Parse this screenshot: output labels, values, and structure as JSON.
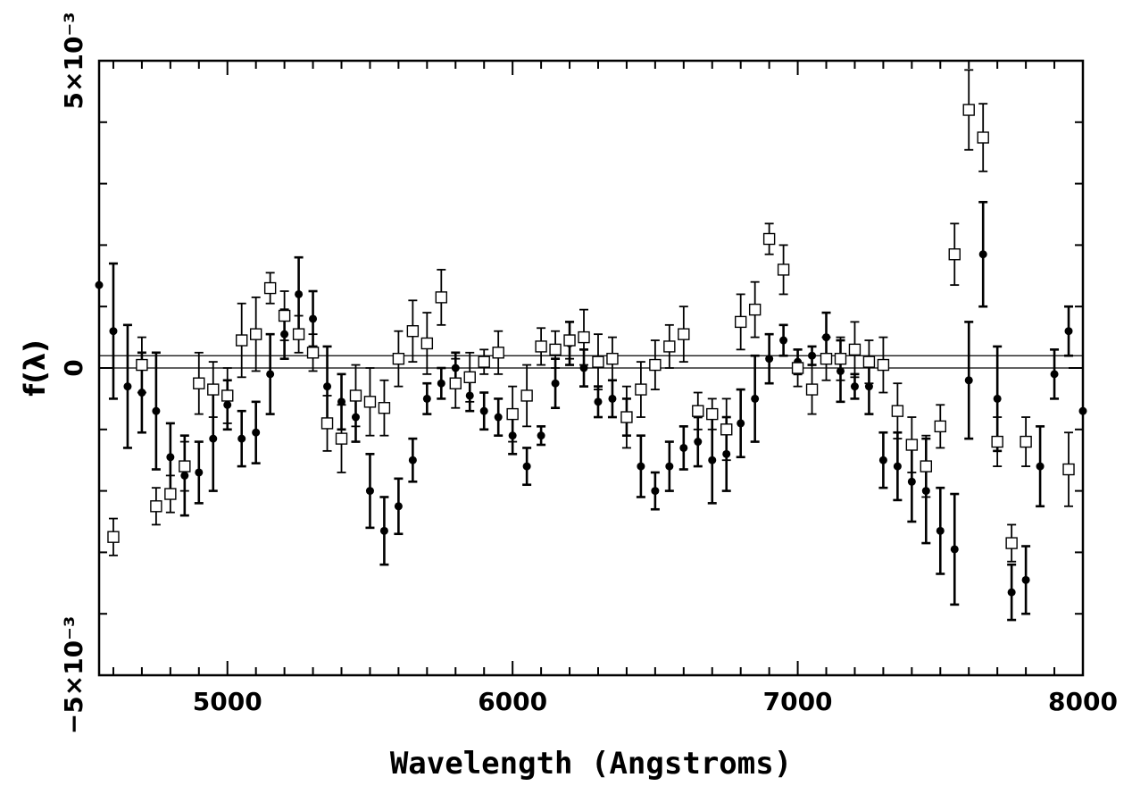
{
  "chart_data": {
    "type": "scatter",
    "xlabel": "Wavelength (Angstroms)",
    "ylabel": "f(λ)",
    "xlim": [
      4550,
      8000
    ],
    "ylim": [
      -0.005,
      0.005
    ],
    "x_ticks": [
      {
        "value": 5000,
        "label": "5000"
      },
      {
        "value": 6000,
        "label": "6000"
      },
      {
        "value": 7000,
        "label": "7000"
      },
      {
        "value": 8000,
        "label": "8000"
      }
    ],
    "y_ticks": [
      {
        "value": 0.005,
        "label": "5×10⁻³"
      },
      {
        "value": 0,
        "label": "0"
      },
      {
        "value": -0.005,
        "label": "−5×10⁻³"
      }
    ],
    "reference_lines": [
      0,
      0.0002
    ],
    "series": [
      {
        "marker": "filled-circle",
        "points": [
          {
            "x": 4550,
            "y": 0.00135,
            "err": 0
          },
          {
            "x": 4600,
            "y": 0.0006,
            "err": 0.0011
          },
          {
            "x": 4650,
            "y": -0.0003,
            "err": 0.001
          },
          {
            "x": 4700,
            "y": -0.0004,
            "err": 0.00065
          },
          {
            "x": 4750,
            "y": -0.0007,
            "err": 0.00095
          },
          {
            "x": 4800,
            "y": -0.00145,
            "err": 0.00055
          },
          {
            "x": 4850,
            "y": -0.00175,
            "err": 0.00065
          },
          {
            "x": 4900,
            "y": -0.0017,
            "err": 0.0005
          },
          {
            "x": 4950,
            "y": -0.00115,
            "err": 0.00085
          },
          {
            "x": 5000,
            "y": -0.0006,
            "err": 0.0004
          },
          {
            "x": 5050,
            "y": -0.00115,
            "err": 0.00045
          },
          {
            "x": 5100,
            "y": -0.00105,
            "err": 0.0005
          },
          {
            "x": 5150,
            "y": -0.0001,
            "err": 0.00065
          },
          {
            "x": 5200,
            "y": 0.00055,
            "err": 0.0004
          },
          {
            "x": 5250,
            "y": 0.0012,
            "err": 0.0006
          },
          {
            "x": 5300,
            "y": 0.0008,
            "err": 0.00045
          },
          {
            "x": 5350,
            "y": -0.0003,
            "err": 0.00065
          },
          {
            "x": 5400,
            "y": -0.00055,
            "err": 0.00045
          },
          {
            "x": 5450,
            "y": -0.0008,
            "err": 0.0004
          },
          {
            "x": 5500,
            "y": -0.002,
            "err": 0.0006
          },
          {
            "x": 5550,
            "y": -0.00265,
            "err": 0.00055
          },
          {
            "x": 5600,
            "y": -0.00225,
            "err": 0.00045
          },
          {
            "x": 5650,
            "y": -0.0015,
            "err": 0.00035
          },
          {
            "x": 5700,
            "y": -0.0005,
            "err": 0.00025
          },
          {
            "x": 5750,
            "y": -0.00025,
            "err": 0.00025
          },
          {
            "x": 5800,
            "y": 0.0,
            "err": 0.00025
          },
          {
            "x": 5850,
            "y": -0.00045,
            "err": 0.00025
          },
          {
            "x": 5900,
            "y": -0.0007,
            "err": 0.0003
          },
          {
            "x": 5950,
            "y": -0.0008,
            "err": 0.0003
          },
          {
            "x": 6000,
            "y": -0.0011,
            "err": 0.0003
          },
          {
            "x": 6050,
            "y": -0.0016,
            "err": 0.0003
          },
          {
            "x": 6100,
            "y": -0.0011,
            "err": 0.00015
          },
          {
            "x": 6150,
            "y": -0.00025,
            "err": 0.0004
          },
          {
            "x": 6200,
            "y": 0.0004,
            "err": 0.00035
          },
          {
            "x": 6250,
            "y": 0.0,
            "err": 0.0003
          },
          {
            "x": 6300,
            "y": -0.00055,
            "err": 0.00025
          },
          {
            "x": 6350,
            "y": -0.0005,
            "err": 0.0003
          },
          {
            "x": 6400,
            "y": -0.0008,
            "err": 0.0003
          },
          {
            "x": 6450,
            "y": -0.0016,
            "err": 0.0005
          },
          {
            "x": 6500,
            "y": -0.002,
            "err": 0.0003
          },
          {
            "x": 6550,
            "y": -0.0016,
            "err": 0.0004
          },
          {
            "x": 6600,
            "y": -0.0013,
            "err": 0.00035
          },
          {
            "x": 6650,
            "y": -0.0012,
            "err": 0.0004
          },
          {
            "x": 6700,
            "y": -0.0015,
            "err": 0.0007
          },
          {
            "x": 6750,
            "y": -0.0014,
            "err": 0.0006
          },
          {
            "x": 6800,
            "y": -0.0009,
            "err": 0.00055
          },
          {
            "x": 6850,
            "y": -0.0005,
            "err": 0.0007
          },
          {
            "x": 6900,
            "y": 0.00015,
            "err": 0.0004
          },
          {
            "x": 6950,
            "y": 0.00045,
            "err": 0.00025
          },
          {
            "x": 7000,
            "y": 0.0001,
            "err": 0.0002
          },
          {
            "x": 7050,
            "y": 0.0002,
            "err": 0.00015
          },
          {
            "x": 7100,
            "y": 0.0005,
            "err": 0.0004
          },
          {
            "x": 7150,
            "y": -5e-05,
            "err": 0.0005
          },
          {
            "x": 7200,
            "y": -0.0003,
            "err": 0.0002
          },
          {
            "x": 7250,
            "y": -0.0003,
            "err": 0.00045
          },
          {
            "x": 7300,
            "y": -0.0015,
            "err": 0.00045
          },
          {
            "x": 7350,
            "y": -0.0016,
            "err": 0.00055
          },
          {
            "x": 7400,
            "y": -0.00185,
            "err": 0.00065
          },
          {
            "x": 7450,
            "y": -0.002,
            "err": 0.00085
          },
          {
            "x": 7500,
            "y": -0.00265,
            "err": 0.0007
          },
          {
            "x": 7550,
            "y": -0.00295,
            "err": 0.0009
          },
          {
            "x": 7600,
            "y": -0.0002,
            "err": 0.00095
          },
          {
            "x": 7650,
            "y": 0.00185,
            "err": 0.00085
          },
          {
            "x": 7700,
            "y": -0.0005,
            "err": 0.00085
          },
          {
            "x": 7750,
            "y": -0.00365,
            "err": 0.00045
          },
          {
            "x": 7800,
            "y": -0.00345,
            "err": 0.00055
          },
          {
            "x": 7850,
            "y": -0.0016,
            "err": 0.00065
          },
          {
            "x": 7900,
            "y": -0.0001,
            "err": 0.0004
          },
          {
            "x": 7950,
            "y": 0.0006,
            "err": 0.0004
          },
          {
            "x": 8000,
            "y": -0.0007,
            "err": 0
          }
        ]
      },
      {
        "marker": "open-square",
        "points": [
          {
            "x": 4600,
            "y": -0.00275,
            "err": 0.0003
          },
          {
            "x": 4700,
            "y": 5e-05,
            "err": 0.00045
          },
          {
            "x": 4750,
            "y": -0.00225,
            "err": 0.0003
          },
          {
            "x": 4800,
            "y": -0.00205,
            "err": 0.0003
          },
          {
            "x": 4850,
            "y": -0.0016,
            "err": 0.0004
          },
          {
            "x": 4900,
            "y": -0.00025,
            "err": 0.0005
          },
          {
            "x": 4950,
            "y": -0.00035,
            "err": 0.00045
          },
          {
            "x": 5000,
            "y": -0.00045,
            "err": 0.00045
          },
          {
            "x": 5050,
            "y": 0.00045,
            "err": 0.0006
          },
          {
            "x": 5100,
            "y": 0.00055,
            "err": 0.0006
          },
          {
            "x": 5150,
            "y": 0.0013,
            "err": 0.00025
          },
          {
            "x": 5200,
            "y": 0.00085,
            "err": 0.0004
          },
          {
            "x": 5250,
            "y": 0.00055,
            "err": 0.0003
          },
          {
            "x": 5300,
            "y": 0.00025,
            "err": 0.0003
          },
          {
            "x": 5350,
            "y": -0.0009,
            "err": 0.00045
          },
          {
            "x": 5400,
            "y": -0.00115,
            "err": 0.00055
          },
          {
            "x": 5450,
            "y": -0.00045,
            "err": 0.0005
          },
          {
            "x": 5500,
            "y": -0.00055,
            "err": 0.00055
          },
          {
            "x": 5550,
            "y": -0.00065,
            "err": 0.00045
          },
          {
            "x": 5600,
            "y": 0.00015,
            "err": 0.00045
          },
          {
            "x": 5650,
            "y": 0.0006,
            "err": 0.0005
          },
          {
            "x": 5700,
            "y": 0.0004,
            "err": 0.0005
          },
          {
            "x": 5750,
            "y": 0.00115,
            "err": 0.00045
          },
          {
            "x": 5800,
            "y": -0.00025,
            "err": 0.0004
          },
          {
            "x": 5850,
            "y": -0.00015,
            "err": 0.0004
          },
          {
            "x": 5900,
            "y": 0.0001,
            "err": 0.0002
          },
          {
            "x": 5950,
            "y": 0.00025,
            "err": 0.00035
          },
          {
            "x": 6000,
            "y": -0.00075,
            "err": 0.00045
          },
          {
            "x": 6050,
            "y": -0.00045,
            "err": 0.0005
          },
          {
            "x": 6100,
            "y": 0.00035,
            "err": 0.0003
          },
          {
            "x": 6150,
            "y": 0.0003,
            "err": 0.0003
          },
          {
            "x": 6200,
            "y": 0.00045,
            "err": 0.0003
          },
          {
            "x": 6250,
            "y": 0.0005,
            "err": 0.00045
          },
          {
            "x": 6300,
            "y": 0.0001,
            "err": 0.00045
          },
          {
            "x": 6350,
            "y": 0.00015,
            "err": 0.00035
          },
          {
            "x": 6400,
            "y": -0.0008,
            "err": 0.0005
          },
          {
            "x": 6450,
            "y": -0.00035,
            "err": 0.00045
          },
          {
            "x": 6500,
            "y": 5e-05,
            "err": 0.0004
          },
          {
            "x": 6550,
            "y": 0.00035,
            "err": 0.00035
          },
          {
            "x": 6600,
            "y": 0.00055,
            "err": 0.00045
          },
          {
            "x": 6650,
            "y": -0.0007,
            "err": 0.0003
          },
          {
            "x": 6700,
            "y": -0.00075,
            "err": 0.00025
          },
          {
            "x": 6750,
            "y": -0.001,
            "err": 0.0005
          },
          {
            "x": 6800,
            "y": 0.00075,
            "err": 0.00045
          },
          {
            "x": 6850,
            "y": 0.00095,
            "err": 0.00045
          },
          {
            "x": 6900,
            "y": 0.0021,
            "err": 0.00025
          },
          {
            "x": 6950,
            "y": 0.0016,
            "err": 0.0004
          },
          {
            "x": 7000,
            "y": 0.0,
            "err": 0.0003
          },
          {
            "x": 7050,
            "y": -0.00035,
            "err": 0.0004
          },
          {
            "x": 7100,
            "y": 0.00015,
            "err": 0.00035
          },
          {
            "x": 7150,
            "y": 0.00015,
            "err": 0.00035
          },
          {
            "x": 7200,
            "y": 0.0003,
            "err": 0.00045
          },
          {
            "x": 7250,
            "y": 0.0001,
            "err": 0.00035
          },
          {
            "x": 7300,
            "y": 5e-05,
            "err": 0.00045
          },
          {
            "x": 7350,
            "y": -0.0007,
            "err": 0.00045
          },
          {
            "x": 7400,
            "y": -0.00125,
            "err": 0.00045
          },
          {
            "x": 7450,
            "y": -0.0016,
            "err": 0.0005
          },
          {
            "x": 7500,
            "y": -0.00095,
            "err": 0.00035
          },
          {
            "x": 7550,
            "y": 0.00185,
            "err": 0.0005
          },
          {
            "x": 7600,
            "y": 0.0042,
            "err": 0.00065
          },
          {
            "x": 7650,
            "y": 0.00375,
            "err": 0.00055
          },
          {
            "x": 7700,
            "y": -0.0012,
            "err": 0.0004
          },
          {
            "x": 7750,
            "y": -0.00285,
            "err": 0.0003
          },
          {
            "x": 7800,
            "y": -0.0012,
            "err": 0.0004
          },
          {
            "x": 7950,
            "y": -0.00165,
            "err": 0.0006
          }
        ]
      }
    ]
  }
}
